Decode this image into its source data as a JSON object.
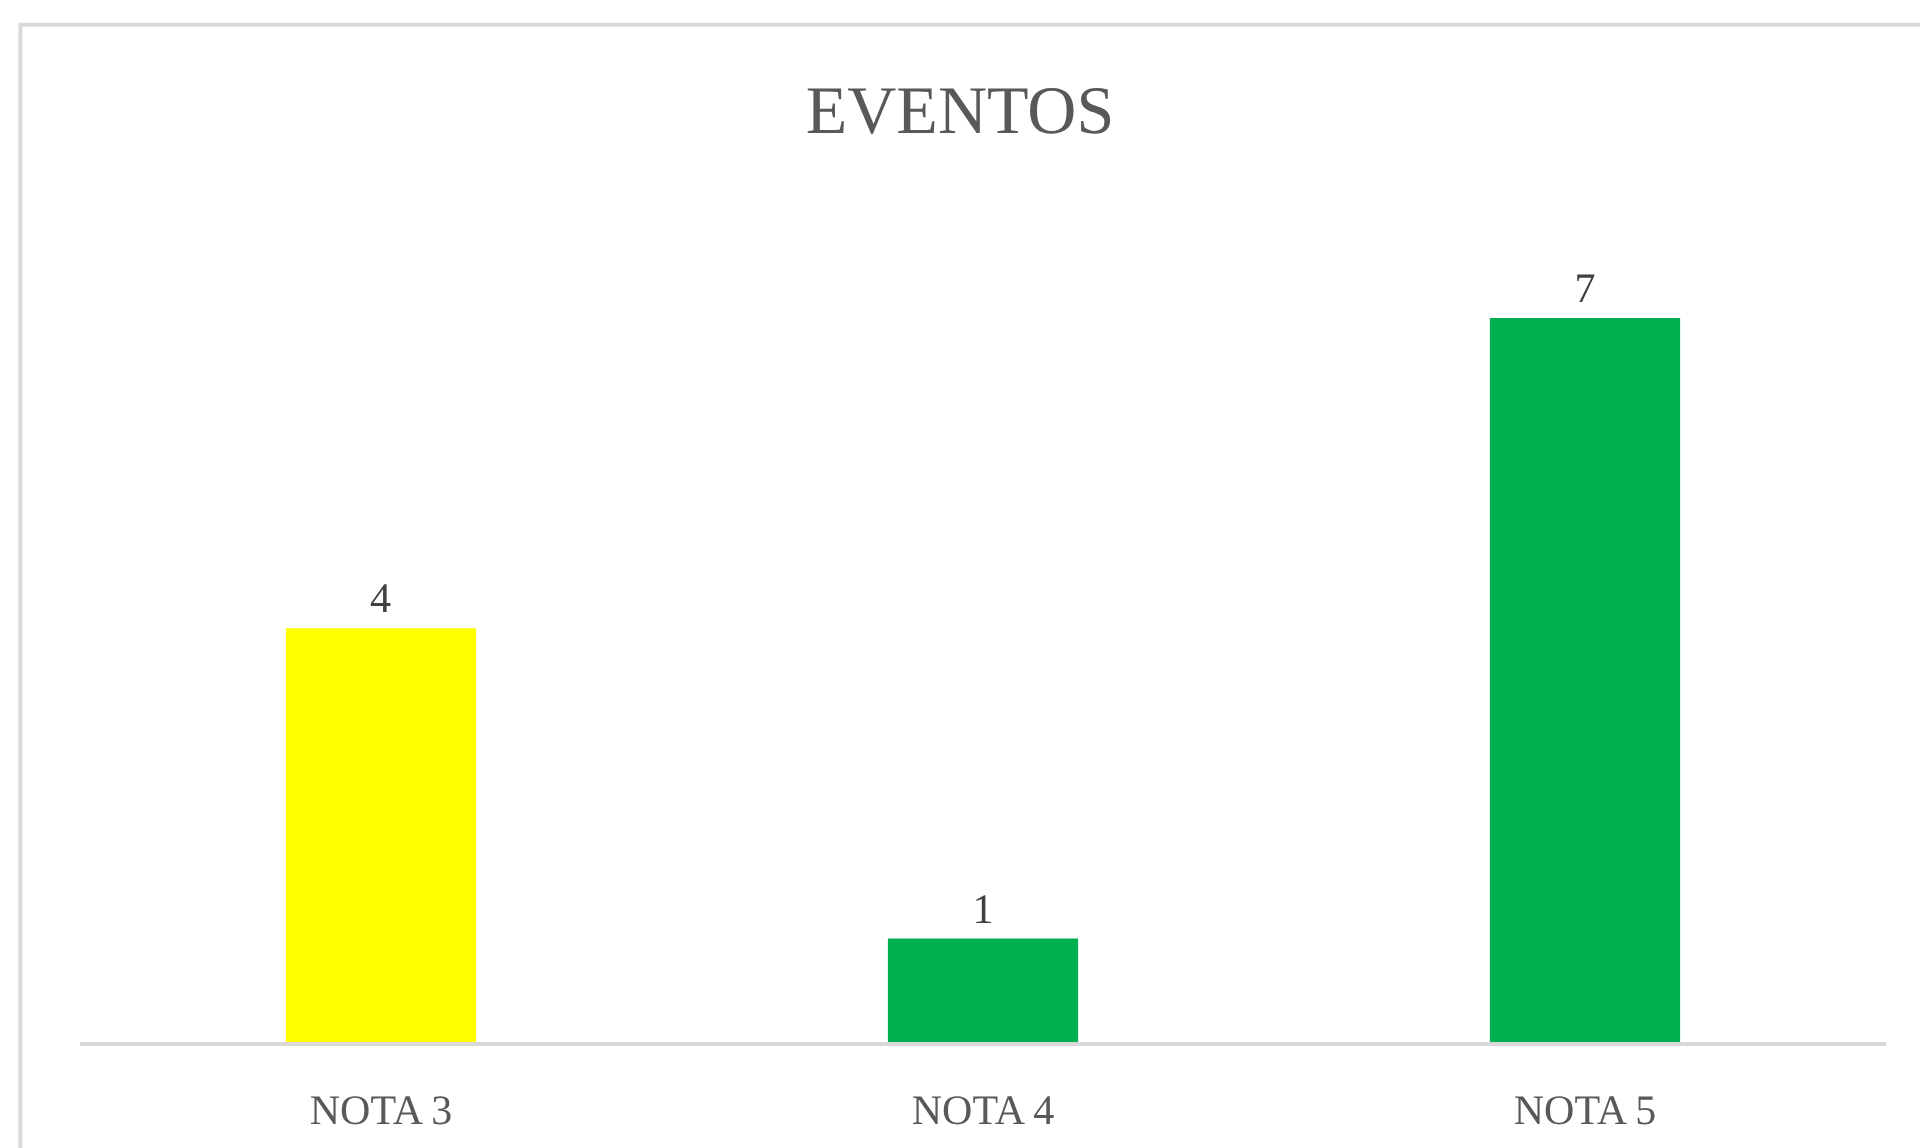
{
  "chart_data": {
    "type": "bar",
    "title": "EVENTOS",
    "categories": [
      "NOTA 3",
      "NOTA 4",
      "NOTA 5"
    ],
    "values": [
      4,
      1,
      7
    ],
    "colors": [
      "#ffff00",
      "#00b050",
      "#00b050"
    ],
    "data_labels": true,
    "tick_labels": "x"
  }
}
